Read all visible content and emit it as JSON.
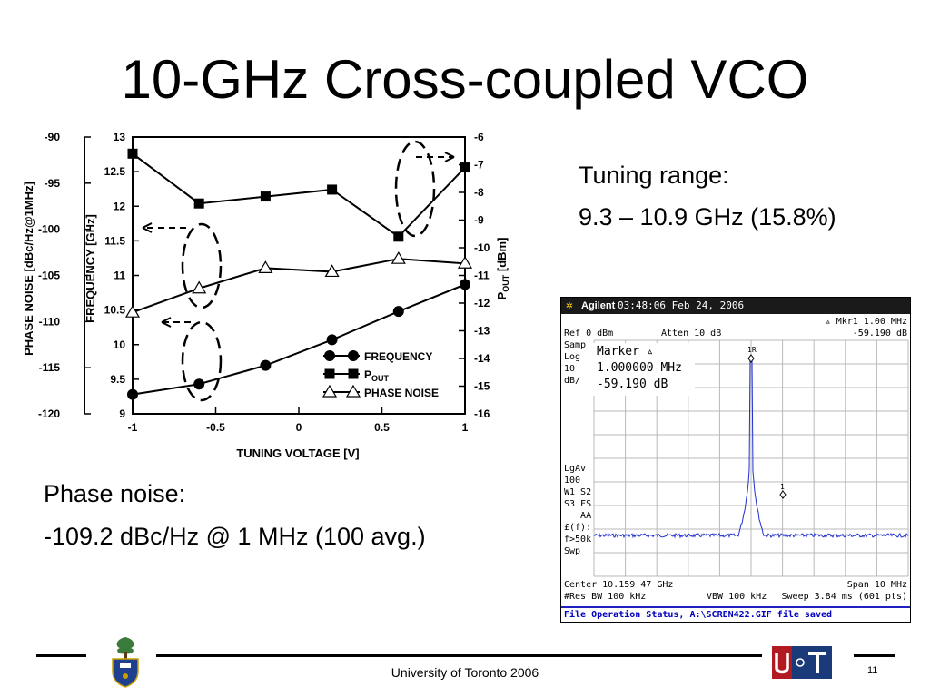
{
  "title": "10-GHz Cross-coupled VCO",
  "tuning": {
    "label": "Tuning range:",
    "value": "9.3 – 10.9 GHz (15.8%)"
  },
  "phase_noise": {
    "label": "Phase noise:",
    "value": "-109.2 dBc/Hz @ 1 MHz (100 avg.)"
  },
  "footer": {
    "text": "University of Toronto 2006",
    "page": "11"
  },
  "chart_data": {
    "type": "line",
    "xlabel": "TUNING VOLTAGE [V]",
    "x": [
      -1,
      -0.6,
      -0.2,
      0.2,
      0.6,
      1
    ],
    "x_ticks": [
      "-1",
      "-0.5",
      "0",
      "0.5",
      "1"
    ],
    "xlim": [
      -1,
      1
    ],
    "axes": {
      "left": {
        "label": "PHASE NOISE [dBc/Hz@1MHz]",
        "range": [
          -120,
          -90
        ],
        "ticks": [
          "-90",
          "-95",
          "-100",
          "-105",
          "-110",
          "-115",
          "-120"
        ]
      },
      "inner_left": {
        "label": "FREQUENCY [GHz]",
        "range": [
          9,
          13
        ],
        "ticks": [
          "13",
          "12.5",
          "12",
          "11.5",
          "11",
          "10.5",
          "10",
          "9.5",
          "9"
        ]
      },
      "right": {
        "label": "P",
        "label_sub": "OUT",
        "label_tail": " [dBm]",
        "range": [
          -16,
          -6
        ],
        "ticks": [
          "-6",
          "-7",
          "-8",
          "-9",
          "-10",
          "-11",
          "-12",
          "-13",
          "-14",
          "-15",
          "-16"
        ]
      }
    },
    "series": [
      {
        "name": "FREQUENCY",
        "axis": "inner_left",
        "marker": "circle",
        "values": [
          9.28,
          9.43,
          9.7,
          10.07,
          10.48,
          10.87
        ]
      },
      {
        "name": "P",
        "name_sub": "OUT",
        "axis": "right",
        "marker": "square",
        "values": [
          -6.6,
          -8.4,
          -8.15,
          -7.9,
          -9.6,
          -7.1
        ]
      },
      {
        "name": "PHASE NOISE",
        "axis": "left",
        "marker": "triangle",
        "values": [
          -109.0,
          -106.4,
          -104.2,
          -104.6,
          -103.2,
          -103.7
        ]
      }
    ],
    "legend": "bottom-right"
  },
  "spectrum": {
    "brand": "Agilent",
    "timestamp": "03:48:06  Feb 24, 2006",
    "ref": "Ref 0 dBm",
    "atten": "Atten 10 dB",
    "mkr_readout": "▵ Mkr1  1.00 MHz",
    "mkr_level": "-59.190 dB",
    "left_labels": [
      "Samp",
      "Log",
      "10",
      "dB/"
    ],
    "left_labels2": [
      "LgAv",
      "100",
      "W1  S2",
      "S3  FS",
      "   AA",
      "£(f):",
      "f>50k",
      "Swp"
    ],
    "marker_title": "Marker ▵",
    "marker_freq": "1.000000 MHz",
    "marker_level": "-59.190 dB",
    "marker1_label": "1R",
    "marker2_label": "1",
    "center": "Center 10.159 47 GHz",
    "span": "Span 10 MHz",
    "res_bw": "#Res BW 100 kHz",
    "vbw": "VBW 100 kHz",
    "sweep": "Sweep 3.84 ms (601 pts)",
    "status": "File Operation Status, A:\\SCREN422.GIF file saved",
    "trace_color": "#1f2fd0",
    "grid_color": "#b8b8b8"
  },
  "logos": {
    "uoft": "U of T"
  }
}
